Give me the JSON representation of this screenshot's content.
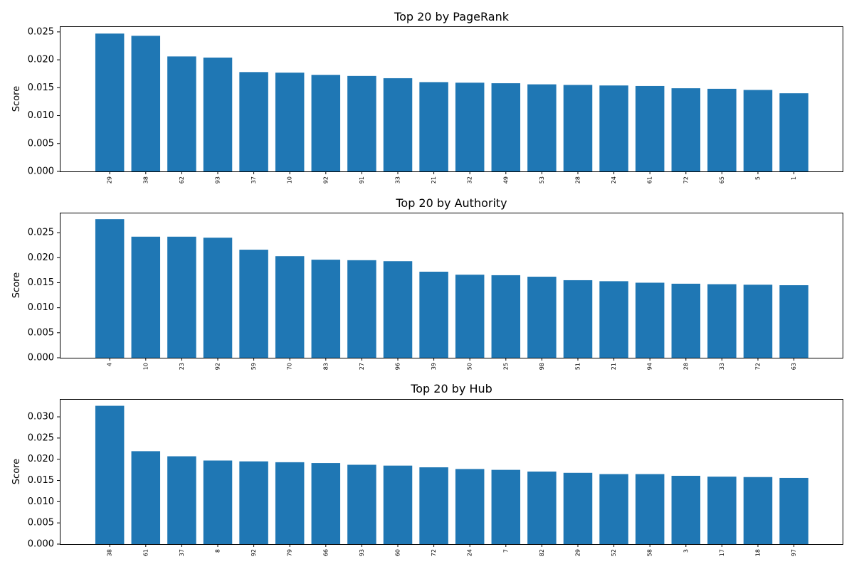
{
  "chart_data": [
    {
      "type": "bar",
      "title": "Top 20 by PageRank",
      "xlabel": "",
      "ylabel": "Score",
      "ylim": [
        0,
        0.026
      ],
      "yticks": [
        "0.000",
        "0.005",
        "0.010",
        "0.015",
        "0.020",
        "0.025"
      ],
      "grid": false,
      "categories": [
        "29",
        "38",
        "62",
        "93",
        "37",
        "10",
        "92",
        "91",
        "33",
        "21",
        "32",
        "49",
        "53",
        "28",
        "24",
        "61",
        "72",
        "65",
        "5",
        "1"
      ],
      "values": [
        0.0247,
        0.0243,
        0.0206,
        0.0204,
        0.0178,
        0.0177,
        0.0173,
        0.0171,
        0.0167,
        0.016,
        0.0159,
        0.0158,
        0.0156,
        0.0155,
        0.0154,
        0.0153,
        0.0149,
        0.0148,
        0.0146,
        0.014
      ],
      "bar_color": "#1f77b4"
    },
    {
      "type": "bar",
      "title": "Top 20 by Authority",
      "xlabel": "",
      "ylabel": "Score",
      "ylim": [
        0,
        0.029
      ],
      "yticks": [
        "0.000",
        "0.005",
        "0.010",
        "0.015",
        "0.020",
        "0.025"
      ],
      "grid": false,
      "categories": [
        "4",
        "10",
        "23",
        "92",
        "59",
        "70",
        "83",
        "27",
        "96",
        "39",
        "50",
        "25",
        "98",
        "51",
        "21",
        "94",
        "28",
        "33",
        "72",
        "63"
      ],
      "values": [
        0.0277,
        0.0242,
        0.0242,
        0.024,
        0.0216,
        0.0203,
        0.0196,
        0.0195,
        0.0193,
        0.0172,
        0.0166,
        0.0165,
        0.0162,
        0.0155,
        0.0153,
        0.015,
        0.0148,
        0.0147,
        0.0146,
        0.0145
      ],
      "bar_color": "#1f77b4"
    },
    {
      "type": "bar",
      "title": "Top 20 by Hub",
      "xlabel": "",
      "ylabel": "Score",
      "ylim": [
        0,
        0.0342
      ],
      "yticks": [
        "0.000",
        "0.005",
        "0.010",
        "0.015",
        "0.020",
        "0.025",
        "0.030"
      ],
      "grid": false,
      "categories": [
        "38",
        "61",
        "37",
        "8",
        "92",
        "79",
        "66",
        "93",
        "60",
        "72",
        "24",
        "7",
        "82",
        "29",
        "52",
        "58",
        "3",
        "17",
        "18",
        "97"
      ],
      "values": [
        0.0326,
        0.0219,
        0.0207,
        0.0197,
        0.0195,
        0.0193,
        0.0191,
        0.0187,
        0.0185,
        0.0181,
        0.0177,
        0.0175,
        0.0171,
        0.0168,
        0.0165,
        0.0165,
        0.0161,
        0.0159,
        0.0158,
        0.0156
      ],
      "bar_color": "#1f77b4"
    }
  ]
}
